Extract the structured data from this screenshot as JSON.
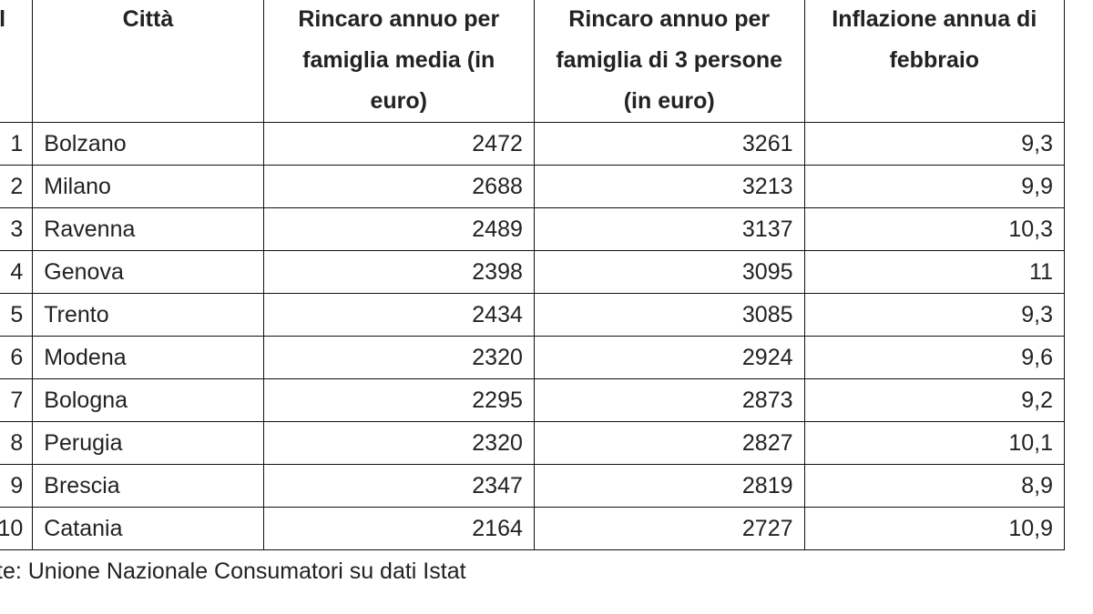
{
  "table": {
    "header": [
      "l",
      "Città",
      "Rincaro annuo per famiglia media (in euro)",
      "Rincaro annuo per famiglia di 3 persone (in euro)",
      "Inflazione annua di febbraio"
    ],
    "rows": [
      [
        "1",
        "Bolzano",
        "2472",
        "3261",
        "9,3"
      ],
      [
        "2",
        "Milano",
        "2688",
        "3213",
        "9,9"
      ],
      [
        "3",
        "Ravenna",
        "2489",
        "3137",
        "10,3"
      ],
      [
        "4",
        "Genova",
        "2398",
        "3095",
        "11"
      ],
      [
        "5",
        "Trento",
        "2434",
        "3085",
        "9,3"
      ],
      [
        "6",
        "Modena",
        "2320",
        "2924",
        "9,6"
      ],
      [
        "7",
        "Bologna",
        "2295",
        "2873",
        "9,2"
      ],
      [
        "8",
        "Perugia",
        "2320",
        "2827",
        "10,1"
      ],
      [
        "9",
        "Brescia",
        "2347",
        "2819",
        "8,9"
      ],
      [
        "10",
        "Catania",
        "2164",
        "2727",
        "10,9"
      ]
    ]
  },
  "footer": "te: Unione Nazionale Consumatori su dati Istat"
}
